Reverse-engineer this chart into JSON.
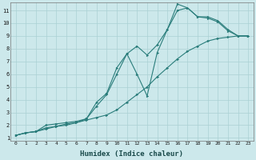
{
  "xlabel": "Humidex (Indice chaleur)",
  "ylabel": "",
  "background_color": "#cce8eb",
  "grid_color": "#aad0d4",
  "line_color": "#2a7d7b",
  "xlim": [
    -0.5,
    23.5
  ],
  "ylim": [
    0.8,
    11.6
  ],
  "xticks": [
    0,
    1,
    2,
    3,
    4,
    5,
    6,
    7,
    8,
    9,
    10,
    11,
    12,
    13,
    14,
    15,
    16,
    17,
    18,
    19,
    20,
    21,
    22,
    23
  ],
  "yticks": [
    1,
    2,
    3,
    4,
    5,
    6,
    7,
    8,
    9,
    10,
    11
  ],
  "lines": [
    {
      "x": [
        0,
        1,
        2,
        3,
        4,
        5,
        6,
        7,
        8,
        9,
        10,
        11,
        12,
        13,
        14,
        15,
        16,
        17,
        18,
        19,
        20,
        21,
        22,
        23
      ],
      "y": [
        1.2,
        1.4,
        1.5,
        1.7,
        1.9,
        2.0,
        2.2,
        2.4,
        2.6,
        2.8,
        3.2,
        3.8,
        4.4,
        5.0,
        5.8,
        6.5,
        7.2,
        7.8,
        8.2,
        8.6,
        8.8,
        8.9,
        9.0,
        9.0
      ]
    },
    {
      "x": [
        0,
        1,
        2,
        3,
        4,
        5,
        6,
        7,
        8,
        9,
        10,
        11,
        12,
        13,
        14,
        15,
        16,
        17,
        18,
        19,
        20,
        21,
        22,
        23
      ],
      "y": [
        1.2,
        1.4,
        1.5,
        1.8,
        1.9,
        2.1,
        2.2,
        2.5,
        3.5,
        4.4,
        6.0,
        7.6,
        8.2,
        7.5,
        8.3,
        9.5,
        11.0,
        11.2,
        10.5,
        10.4,
        10.1,
        9.4,
        9.0,
        9.0
      ]
    },
    {
      "x": [
        0,
        1,
        2,
        3,
        4,
        5,
        6,
        7,
        8,
        9,
        10,
        11,
        12,
        13,
        14,
        15,
        16,
        17,
        18,
        19,
        20,
        21,
        22,
        23
      ],
      "y": [
        1.2,
        1.4,
        1.5,
        2.0,
        2.1,
        2.2,
        2.3,
        2.5,
        3.8,
        4.5,
        6.5,
        7.6,
        6.0,
        4.3,
        7.7,
        9.5,
        11.5,
        11.2,
        10.5,
        10.5,
        10.2,
        9.5,
        9.0,
        9.0
      ]
    }
  ]
}
